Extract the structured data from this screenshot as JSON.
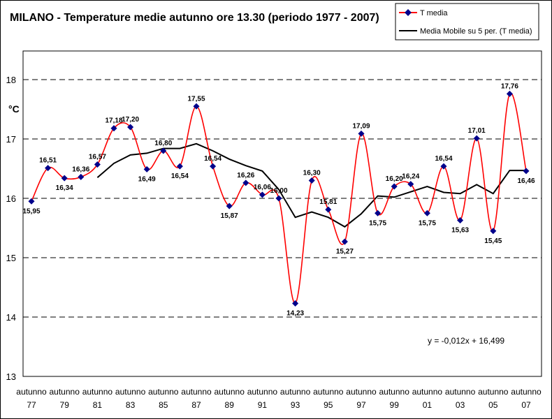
{
  "chart_data": {
    "type": "line",
    "title": "MILANO - Temperature medie autunno ore 13.30 (periodo 1977 - 2007)",
    "ylabel": "°C",
    "ylim": [
      13,
      18
    ],
    "yticks": [
      "13",
      "14",
      "15",
      "16",
      "17",
      "18"
    ],
    "grid": "dashed horizontal",
    "legend": "top-right",
    "x": [
      "77",
      "78",
      "79",
      "80",
      "81",
      "82",
      "83",
      "84",
      "85",
      "86",
      "87",
      "88",
      "89",
      "90",
      "91",
      "92",
      "93",
      "94",
      "95",
      "96",
      "97",
      "98",
      "99",
      "00",
      "01",
      "02",
      "03",
      "04",
      "05",
      "06",
      "07"
    ],
    "xtick_line1": [
      "autunno",
      "autunno",
      "autunno",
      "autunno",
      "autunno",
      "autunno",
      "autunno",
      "autunno",
      "autunno",
      "autunno",
      "autunno",
      "autunno",
      "autunno",
      "autunno",
      "autunno",
      "autunno"
    ],
    "xtick_line2": [
      "77",
      "79",
      "81",
      "83",
      "85",
      "87",
      "89",
      "91",
      "93",
      "95",
      "97",
      "99",
      "01",
      "03",
      "05",
      "07"
    ],
    "series": [
      {
        "name": "T media",
        "color": "#ff0000",
        "marker_color": "#00008b",
        "values": [
          15.95,
          16.51,
          16.34,
          16.36,
          16.57,
          17.18,
          17.2,
          16.49,
          16.8,
          16.54,
          17.55,
          16.54,
          15.87,
          16.26,
          16.06,
          16.0,
          14.23,
          16.3,
          15.81,
          15.27,
          17.09,
          15.75,
          16.2,
          16.24,
          15.75,
          16.54,
          15.63,
          17.01,
          15.45,
          17.76,
          16.46
        ],
        "labels": [
          "15,95",
          "16,51",
          "16,34",
          "16,36",
          "16,57",
          "17,18",
          "17,20",
          "16,49",
          "16,80",
          "16,54",
          "17,55",
          "16,54",
          "15,87",
          "16,26",
          "16,06",
          "16,00",
          "14,23",
          "16,30",
          "15,81",
          "15,27",
          "17,09",
          "15,75",
          "16,20",
          "16,24",
          "15,75",
          "16,54",
          "15,63",
          "17,01",
          "15,45",
          "17,76",
          "16,46"
        ]
      },
      {
        "name": "Media Mobile su 5 per. (T media)",
        "color": "#000000",
        "values": [
          null,
          null,
          null,
          null,
          16.35,
          16.59,
          16.73,
          16.76,
          16.84,
          16.84,
          16.92,
          16.8,
          16.66,
          16.55,
          16.46,
          16.15,
          15.68,
          15.77,
          15.68,
          15.52,
          15.74,
          16.04,
          16.02,
          16.11,
          16.2,
          16.1,
          16.08,
          16.23,
          16.08,
          16.47,
          16.47
        ]
      }
    ],
    "trendline_equation": "y = -0,012x + 16,499"
  },
  "colors": {
    "line": "#ff0000",
    "marker": "#00008b",
    "moving_average": "#000000",
    "grid": "#000000"
  }
}
